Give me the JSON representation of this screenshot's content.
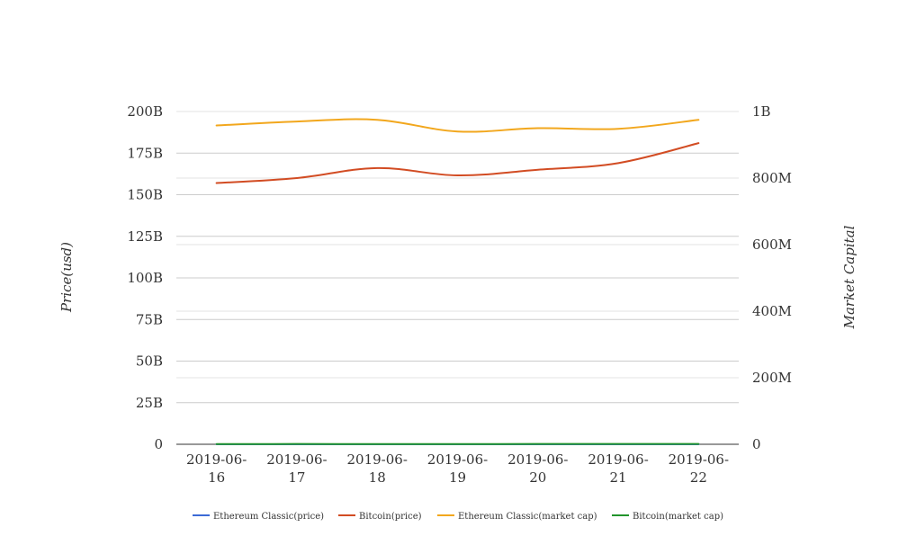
{
  "chart_data": {
    "type": "line",
    "x": [
      "2019-06-16",
      "2019-06-17",
      "2019-06-18",
      "2019-06-19",
      "2019-06-20",
      "2019-06-21",
      "2019-06-22"
    ],
    "x_tick_labels": [
      [
        "2019-06-",
        "16"
      ],
      [
        "2019-06-",
        "17"
      ],
      [
        "2019-06-",
        "18"
      ],
      [
        "2019-06-",
        "19"
      ],
      [
        "2019-06-",
        "20"
      ],
      [
        "2019-06-",
        "21"
      ],
      [
        "2019-06-",
        "22"
      ]
    ],
    "ylabel": "Price(usd)",
    "y2label": "Market Capital",
    "ylim": [
      0,
      200000000000
    ],
    "y2lim": [
      0,
      1000000000
    ],
    "y_ticks": [
      0,
      25000000000,
      50000000000,
      75000000000,
      100000000000,
      125000000000,
      150000000000,
      175000000000,
      200000000000
    ],
    "y_tick_labels": [
      "0",
      "25B",
      "50B",
      "75B",
      "100B",
      "125B",
      "150B",
      "175B",
      "200B"
    ],
    "y2_ticks": [
      0,
      200000000,
      400000000,
      600000000,
      800000000,
      1000000000
    ],
    "y2_tick_labels": [
      "0",
      "200M",
      "400M",
      "600M",
      "800M",
      "1B"
    ],
    "grid": true,
    "legend_position": "bottom",
    "series": [
      {
        "name": "Ethereum Classic(price)",
        "axis": "left",
        "color": "#3c6ad6",
        "values": [
          6,
          6,
          6,
          6,
          6,
          6,
          6
        ]
      },
      {
        "name": "Bitcoin(price)",
        "axis": "right",
        "color": "#d24c23",
        "values": [
          785000000,
          800000000,
          830000000,
          808000000,
          825000000,
          845000000,
          905000000
        ]
      },
      {
        "name": "Ethereum Classic(market cap)",
        "axis": "right",
        "color": "#f2a71d",
        "values": [
          958000000,
          970000000,
          975000000,
          940000000,
          950000000,
          948000000,
          975000000
        ]
      },
      {
        "name": "Bitcoin(market cap)",
        "axis": "left",
        "color": "#22942c",
        "values": [
          160000000,
          170000000,
          160000000,
          165000000,
          170000000,
          180000000,
          190000000
        ]
      }
    ]
  }
}
